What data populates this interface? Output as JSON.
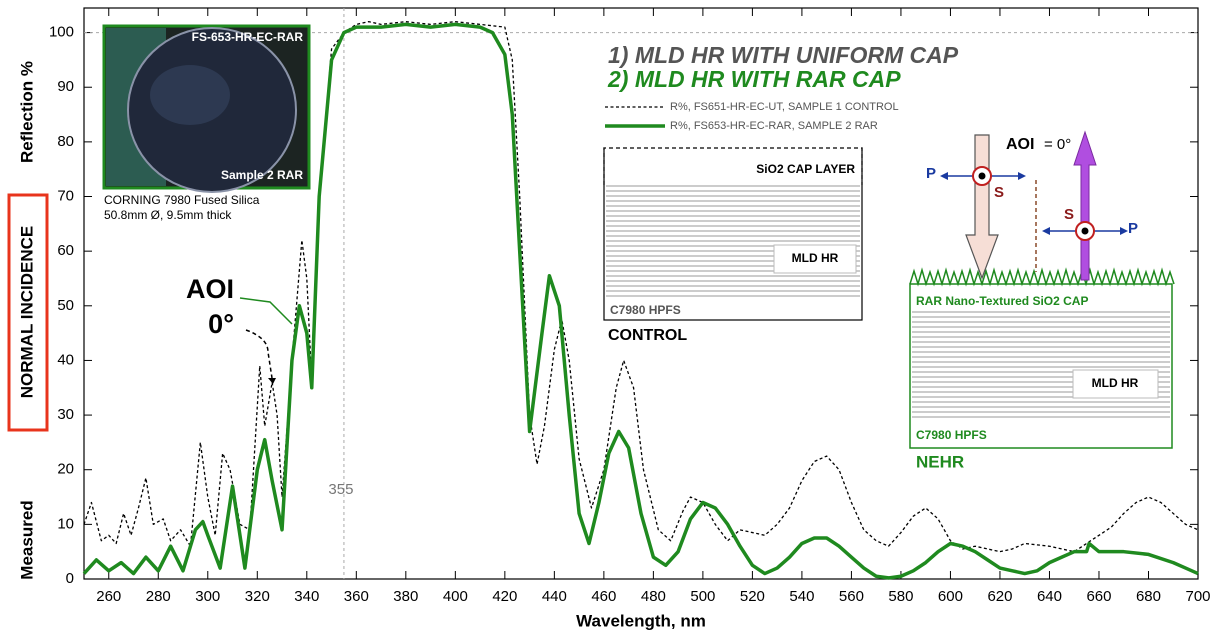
{
  "chart_data": {
    "type": "line",
    "title_lines": [
      "1) MLD HR WITH UNIFORM CAP",
      "2) MLD HR WITH RAR CAP"
    ],
    "x_label": "Wavelength, nm",
    "y_label_parts": [
      "Measured",
      "NORMAL INCIDENCE",
      "Reflection %"
    ],
    "xlim": [
      250,
      700
    ],
    "xticks": [
      260,
      280,
      300,
      320,
      340,
      360,
      380,
      400,
      420,
      440,
      460,
      480,
      500,
      520,
      540,
      560,
      580,
      600,
      620,
      640,
      660,
      680,
      700
    ],
    "ylim": [
      0,
      104.5
    ],
    "yticks": [
      0,
      10,
      20,
      30,
      40,
      50,
      60,
      70,
      80,
      90,
      100
    ],
    "marker_x": 355,
    "series": [
      {
        "name": "R%, FS651-HR-EC-UT, SAMPLE 1 CONTROL",
        "color": "#000000",
        "dash": true,
        "x": [
          250,
          253,
          257,
          260,
          263,
          266,
          269,
          272,
          275,
          278,
          282,
          285,
          289,
          293,
          297,
          300,
          303,
          306,
          309,
          313,
          317,
          321,
          323,
          326,
          328,
          330,
          334,
          338,
          340,
          342,
          345,
          350,
          355,
          360,
          365,
          370,
          380,
          390,
          400,
          410,
          420,
          423,
          426,
          430,
          433,
          436,
          440,
          443,
          446,
          450,
          455,
          460,
          465,
          468,
          472,
          476,
          482,
          487,
          492,
          495,
          500,
          505,
          510,
          515,
          520,
          525,
          530,
          535,
          540,
          545,
          550,
          555,
          560,
          565,
          570,
          575,
          580,
          585,
          590,
          595,
          600,
          605,
          610,
          615,
          620,
          625,
          630,
          640,
          650,
          655,
          660,
          665,
          670,
          675,
          680,
          685,
          690,
          695,
          700
        ],
        "values": [
          10,
          14,
          7,
          8,
          6.5,
          12,
          8,
          13,
          18.5,
          10,
          11,
          7,
          9,
          6,
          25,
          15,
          8,
          23,
          20,
          10,
          9,
          39,
          28,
          36,
          30,
          15,
          40,
          62,
          55,
          36,
          70,
          97,
          100,
          101.5,
          102,
          101.5,
          102,
          101.5,
          102,
          101.5,
          101,
          95,
          70,
          30,
          21,
          28,
          42,
          47.5,
          40,
          22,
          13,
          20,
          35,
          40,
          35,
          20,
          9,
          7,
          12.5,
          15,
          14,
          10,
          7,
          9,
          8.5,
          8,
          10,
          13,
          18,
          21.5,
          22.5,
          20,
          14,
          9,
          7,
          6,
          8.5,
          11.5,
          13,
          11,
          7,
          5.5,
          6,
          5.5,
          5,
          5.5,
          6.5,
          6,
          5,
          6.5,
          8,
          9.5,
          12,
          14,
          15,
          14,
          12,
          10,
          9
        ]
      },
      {
        "name": "R%, FS653-HR-EC-RAR, SAMPLE 2 RAR",
        "color": "#1f8a1f",
        "dash": false,
        "x": [
          250,
          255,
          260,
          265,
          270,
          275,
          280,
          285,
          290,
          295,
          298,
          300,
          305,
          310,
          315,
          320,
          323,
          326,
          330,
          334,
          337,
          340,
          342,
          345,
          350,
          355,
          360,
          370,
          380,
          390,
          400,
          410,
          415,
          420,
          423,
          426,
          430,
          435,
          438,
          442,
          446,
          450,
          454,
          458,
          462,
          466,
          470,
          475,
          480,
          485,
          490,
          495,
          500,
          505,
          510,
          515,
          520,
          525,
          530,
          535,
          540,
          545,
          550,
          555,
          560,
          565,
          570,
          575,
          580,
          585,
          590,
          595,
          600,
          605,
          610,
          615,
          620,
          625,
          630,
          635,
          640,
          645,
          650,
          655,
          656,
          660,
          670,
          680,
          690,
          695,
          700
        ],
        "values": [
          1,
          3.5,
          1.5,
          3,
          1,
          4,
          1.5,
          6,
          1.5,
          9,
          10.5,
          8,
          2,
          17,
          2,
          20,
          25.5,
          18,
          9,
          40,
          50,
          45,
          35,
          70,
          95,
          100,
          101,
          101,
          101.5,
          101,
          101.5,
          101,
          100,
          96,
          85,
          60,
          27,
          45,
          55.5,
          50,
          30,
          12,
          6.5,
          14,
          23,
          27,
          24,
          12,
          4,
          2.5,
          5,
          11,
          14,
          13,
          10,
          6,
          2.5,
          1,
          2,
          4,
          6.5,
          7.5,
          7.5,
          6,
          4,
          2,
          0.5,
          0.2,
          0.5,
          1.5,
          3,
          5,
          6.5,
          6,
          5,
          3.5,
          2,
          1.5,
          1,
          1.5,
          3,
          4,
          5,
          5,
          6.5,
          5,
          5,
          4.5,
          3,
          2,
          1
        ]
      }
    ],
    "annotations": {
      "aoi": "AOI",
      "aoi_angle": "0°"
    },
    "photo": {
      "label_top": "FS-653-HR-EC-RAR",
      "label_bottom": "Sample 2 RAR",
      "caption_1": "CORNING 7980 Fused Silica",
      "caption_2": "50.8mm Ø, 9.5mm thick"
    },
    "control_diagram": {
      "cap": "SiO2 CAP LAYER",
      "stack": "MLD HR",
      "substrate": "C7980 HPFS",
      "name": "CONTROL"
    },
    "nehr_diagram": {
      "aoi": "AOI",
      "aoi_value": "= 0°",
      "p_in": "P",
      "s_in": "S",
      "s_out": "S",
      "p_out": "P",
      "cap": "RAR Nano-Textured SiO2 CAP",
      "stack": "MLD HR",
      "substrate": "C7980 HPFS",
      "name": "NEHR"
    }
  }
}
